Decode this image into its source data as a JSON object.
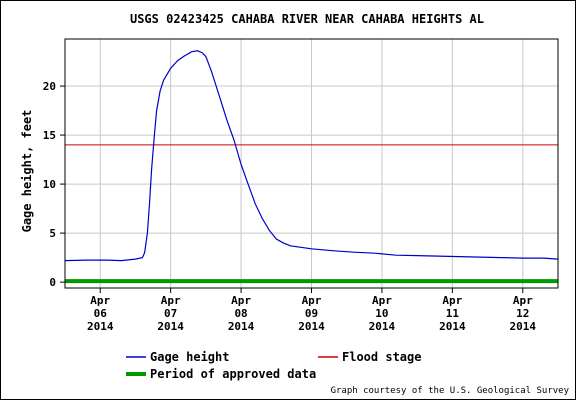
{
  "chart_data": {
    "type": "line",
    "title": "USGS 02423425 CAHABA RIVER NEAR CAHABA HEIGHTS AL",
    "xlabel": "",
    "ylabel": "Gage height, feet",
    "xlim": [
      -0.5,
      6.5
    ],
    "ylim": [
      -0.6,
      24.8
    ],
    "yticks": [
      0,
      5,
      10,
      15,
      20
    ],
    "x_ticks": [
      {
        "x": 0,
        "lines": [
          "Apr",
          "06",
          "2014"
        ]
      },
      {
        "x": 1,
        "lines": [
          "Apr",
          "07",
          "2014"
        ]
      },
      {
        "x": 2,
        "lines": [
          "Apr",
          "08",
          "2014"
        ]
      },
      {
        "x": 3,
        "lines": [
          "Apr",
          "09",
          "2014"
        ]
      },
      {
        "x": 4,
        "lines": [
          "Apr",
          "10",
          "2014"
        ]
      },
      {
        "x": 5,
        "lines": [
          "Apr",
          "11",
          "2014"
        ]
      },
      {
        "x": 6,
        "lines": [
          "Apr",
          "12",
          "2014"
        ]
      }
    ],
    "grid": true,
    "series": [
      {
        "name": "Gage height",
        "color": "#0000cc",
        "points": [
          [
            -0.5,
            2.2
          ],
          [
            -0.2,
            2.25
          ],
          [
            0.1,
            2.25
          ],
          [
            0.3,
            2.2
          ],
          [
            0.5,
            2.35
          ],
          [
            0.6,
            2.5
          ],
          [
            0.63,
            3.0
          ],
          [
            0.67,
            5.0
          ],
          [
            0.7,
            8.0
          ],
          [
            0.73,
            11.5
          ],
          [
            0.77,
            15.0
          ],
          [
            0.8,
            17.5
          ],
          [
            0.85,
            19.5
          ],
          [
            0.9,
            20.6
          ],
          [
            1.0,
            21.8
          ],
          [
            1.1,
            22.6
          ],
          [
            1.2,
            23.1
          ],
          [
            1.3,
            23.5
          ],
          [
            1.38,
            23.6
          ],
          [
            1.45,
            23.4
          ],
          [
            1.5,
            23.0
          ],
          [
            1.58,
            21.5
          ],
          [
            1.7,
            18.8
          ],
          [
            1.8,
            16.5
          ],
          [
            1.9,
            14.5
          ],
          [
            2.0,
            12.0
          ],
          [
            2.1,
            10.0
          ],
          [
            2.2,
            8.0
          ],
          [
            2.3,
            6.5
          ],
          [
            2.4,
            5.3
          ],
          [
            2.5,
            4.4
          ],
          [
            2.6,
            4.0
          ],
          [
            2.7,
            3.7
          ],
          [
            2.85,
            3.55
          ],
          [
            3.0,
            3.4
          ],
          [
            3.3,
            3.2
          ],
          [
            3.6,
            3.05
          ],
          [
            3.9,
            2.95
          ],
          [
            4.2,
            2.75
          ],
          [
            4.5,
            2.7
          ],
          [
            4.8,
            2.65
          ],
          [
            5.1,
            2.6
          ],
          [
            5.4,
            2.55
          ],
          [
            5.7,
            2.5
          ],
          [
            6.0,
            2.45
          ],
          [
            6.3,
            2.45
          ],
          [
            6.5,
            2.35
          ]
        ]
      }
    ],
    "flood_stage": {
      "name": "Flood stage",
      "value": 14,
      "color": "#cc0000"
    },
    "approved_period": {
      "name": "Period of approved data",
      "value": 0.1,
      "color": "#009900"
    },
    "credit": "Graph courtesy of the U.S. Geological Survey"
  }
}
